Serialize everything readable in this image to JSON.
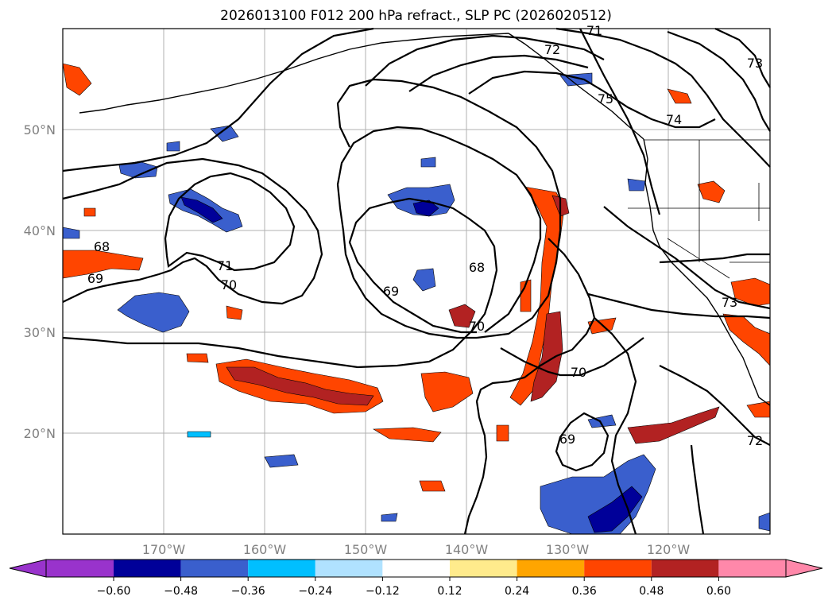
{
  "title": "2026013100 F012 200 hPa refract., SLP PC (2026020512)",
  "map": {
    "lat_labels": [
      "50°N",
      "40°N",
      "30°N",
      "20°N"
    ],
    "lon_labels": [
      "170°W",
      "160°W",
      "150°W",
      "140°W",
      "130°W",
      "120°W"
    ],
    "contour_labels": [
      "71",
      "72",
      "75",
      "74",
      "73",
      "68",
      "69",
      "71",
      "70",
      "69",
      "68",
      "70",
      "70",
      "69",
      "73",
      "72"
    ]
  },
  "colorbar": {
    "tick_labels": [
      "−0.60",
      "−0.48",
      "−0.36",
      "−0.24",
      "−0.12",
      "0.12",
      "0.24",
      "0.36",
      "0.48",
      "0.60"
    ],
    "colors": [
      "#9933cc",
      "#000099",
      "#3a5fcd",
      "#00bfff",
      "#b0e2ff",
      "#ffffff",
      "#ffeb8c",
      "#ffa500",
      "#ff4500",
      "#b22222",
      "#ff88aa"
    ]
  },
  "colors": {
    "neg_fill": "#3a5fcd",
    "neg_light": "#00bfff",
    "neg_dark": "#000099",
    "pos_fill": "#ff4500",
    "pos_dark": "#b22222",
    "pos_light": "#ffa500"
  }
}
